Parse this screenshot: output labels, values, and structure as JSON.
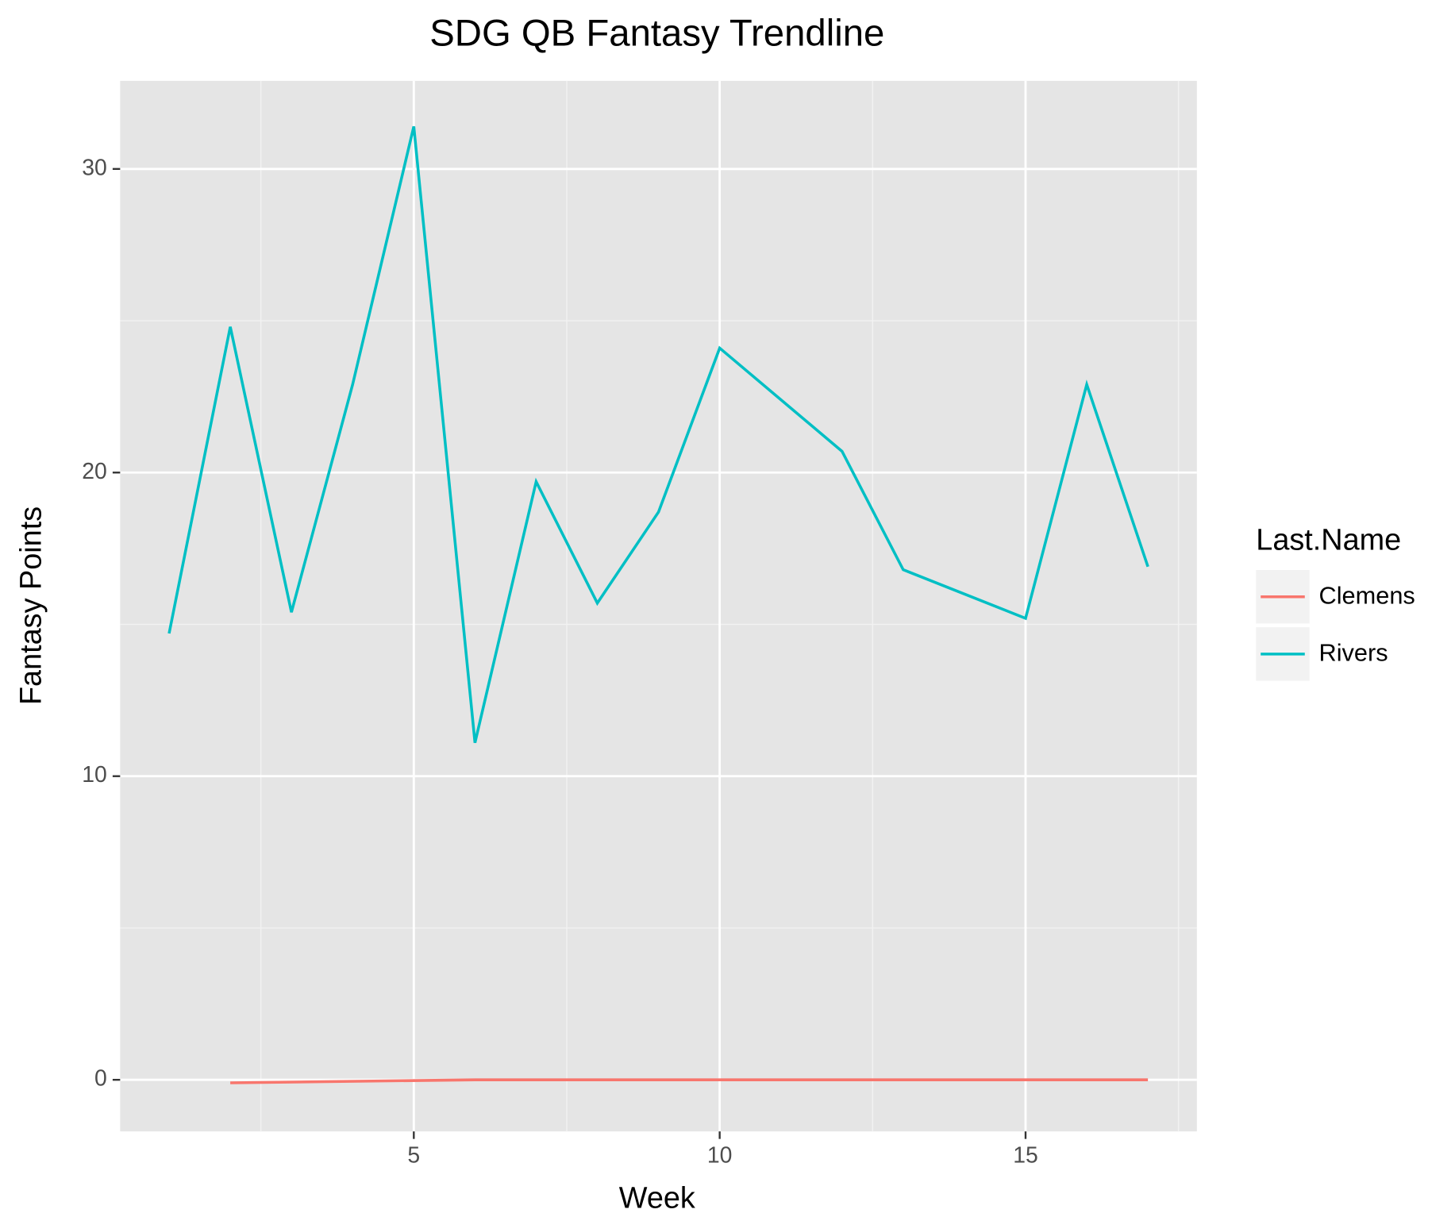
{
  "chart_data": {
    "type": "line",
    "title": "SDG QB Fantasy Trendline",
    "x_label": "Week",
    "y_label": "Fantasy Points",
    "legend_title": "Last.Name",
    "legend_position": "right",
    "grid": true,
    "xlim": [
      0.2,
      17.8
    ],
    "ylim": [
      -1.7,
      32.9
    ],
    "xticks": [
      5,
      10,
      15
    ],
    "yticks": [
      0,
      10,
      20,
      30
    ],
    "minor_xticks": [
      2.5,
      7.5,
      12.5,
      17.5
    ],
    "minor_yticks": [
      5,
      15,
      25
    ],
    "series": [
      {
        "name": "Clemens",
        "color": "#f8766d",
        "x": [
          2,
          6,
          17
        ],
        "values": [
          -0.1,
          0,
          0
        ]
      },
      {
        "name": "Rivers",
        "color": "#00bfc4",
        "x": [
          1,
          2,
          3,
          4,
          5,
          6,
          7,
          8,
          9,
          10,
          12,
          13,
          15,
          16,
          17
        ],
        "values": [
          14.7,
          24.8,
          15.4,
          22.9,
          31.4,
          11.1,
          19.7,
          15.7,
          18.7,
          24.1,
          20.7,
          16.8,
          15.2,
          22.9,
          16.9
        ]
      }
    ]
  }
}
